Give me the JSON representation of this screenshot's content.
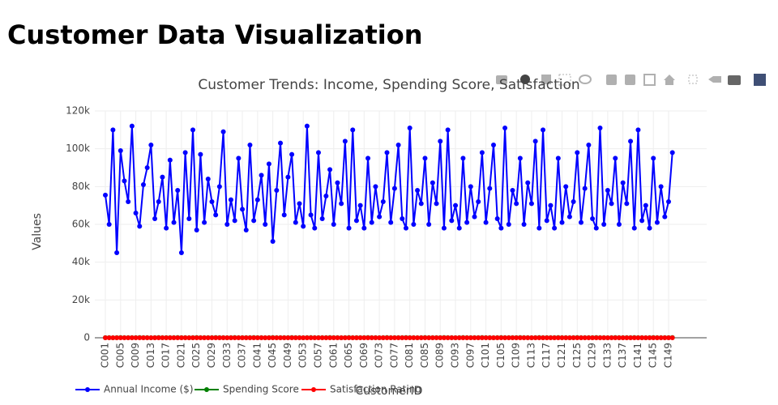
{
  "page_title": "Customer Data Visualization",
  "chart_data": {
    "type": "line",
    "title": "Customer Trends: Income, Spending Score, Satisfaction",
    "x_label": "CustomerID",
    "y_label": "Values",
    "categories": [
      "C001",
      null,
      null,
      null,
      "C005",
      null,
      null,
      null,
      "C009",
      null,
      null,
      null,
      "C013",
      null,
      null,
      null,
      "C017",
      null,
      null,
      null,
      "C021",
      null,
      null,
      null,
      "C025",
      null,
      null,
      null,
      "C029",
      null,
      null,
      null,
      "C033",
      null,
      null,
      null,
      "C037",
      null,
      null,
      null,
      "C041",
      null,
      null,
      null,
      "C045",
      null,
      null,
      null,
      "C049",
      null,
      null,
      null,
      "C053",
      null,
      null,
      null,
      "C057",
      null,
      null,
      null,
      "C061",
      null,
      null,
      null,
      "C065",
      null,
      null,
      null,
      "C069",
      null,
      null,
      null,
      "C073",
      null,
      null,
      null,
      "C077",
      null,
      null,
      null,
      "C081",
      null,
      null,
      null,
      "C085",
      null,
      null,
      null,
      "C089",
      null,
      null,
      null,
      "C093",
      null,
      null,
      null,
      "C097",
      null,
      null,
      null,
      "C101",
      null,
      null,
      null,
      "C105",
      null,
      null,
      null,
      "C109",
      null,
      null,
      null,
      "C113",
      null,
      null,
      null,
      "C117",
      null,
      null,
      null,
      "C121",
      null,
      null,
      null,
      "C125",
      null,
      null,
      null,
      "C129",
      null,
      null,
      null,
      "C133",
      null,
      null,
      null,
      "C137",
      null,
      null,
      null,
      "C141",
      null,
      null,
      null,
      "C145",
      null,
      null,
      null,
      "C149",
      null
    ],
    "series": [
      {
        "name": "Annual Income ($)",
        "color": "#0000ff",
        "values": [
          75500,
          60000,
          110000,
          45000,
          99000,
          83000,
          72000,
          112000,
          66000,
          59000,
          81000,
          90000,
          102000,
          63000,
          72000,
          85000,
          58000,
          94000,
          61000,
          78000,
          45000,
          98000,
          63000,
          110000,
          57000,
          97000,
          61000,
          84000,
          72000,
          65000,
          80000,
          109000,
          60000,
          73000,
          62000,
          95000,
          68000,
          57000,
          102000,
          62000,
          73000,
          86000,
          60000,
          92000,
          51000,
          78000,
          103000,
          65000,
          85000,
          97000,
          61000,
          71000,
          59000,
          112000,
          65000,
          58000,
          98000,
          63000,
          75000,
          89000,
          60000,
          82000,
          71000,
          104000,
          58000,
          110000,
          62000,
          70000,
          58000,
          95000,
          61000,
          80000,
          64000,
          72000,
          98000,
          61000,
          79000,
          102000,
          63000,
          58000,
          111000,
          60000,
          78000,
          71000,
          95000,
          60000,
          82000,
          71000,
          104000,
          58000,
          110000,
          62000,
          70000,
          58000,
          95000,
          61000,
          80000,
          64000,
          72000,
          98000,
          61000,
          79000,
          102000,
          63000,
          58000,
          111000,
          60000,
          78000,
          71000,
          95000,
          60000,
          82000,
          71000,
          104000,
          58000,
          110000,
          62000,
          70000,
          58000,
          95000,
          61000,
          80000,
          64000,
          72000,
          98000,
          61000,
          79000,
          102000,
          63000,
          58000,
          111000,
          60000,
          78000,
          71000,
          95000,
          60000,
          82000,
          71000,
          104000,
          58000,
          110000,
          62000,
          70000,
          58000,
          95000,
          61000,
          80000,
          64000,
          72000,
          98000
        ]
      },
      {
        "name": "Spending Score",
        "color": "#008000",
        "values": [
          42,
          78,
          15,
          63,
          89,
          27,
          54,
          71,
          36,
          95,
          42,
          78,
          15,
          63,
          89,
          27,
          54,
          71,
          36,
          95,
          42,
          78,
          15,
          63,
          89,
          27,
          54,
          71,
          36,
          95,
          42,
          78,
          15,
          63,
          89,
          27,
          54,
          71,
          36,
          95,
          42,
          78,
          15,
          63,
          89,
          27,
          54,
          71,
          36,
          95,
          42,
          78,
          15,
          63,
          89,
          27,
          54,
          71,
          36,
          95,
          42,
          78,
          15,
          63,
          89,
          27,
          54,
          71,
          36,
          95,
          42,
          78,
          15,
          63,
          89,
          27,
          54,
          71,
          36,
          95,
          42,
          78,
          15,
          63,
          89,
          27,
          54,
          71,
          36,
          95,
          42,
          78,
          15,
          63,
          89,
          27,
          54,
          71,
          36,
          95,
          42,
          78,
          15,
          63,
          89,
          27,
          54,
          71,
          36,
          95,
          42,
          78,
          15,
          63,
          89,
          27,
          54,
          71,
          36,
          95,
          42,
          78,
          15,
          63,
          89,
          27,
          54,
          71,
          36,
          95,
          42,
          78,
          15,
          63,
          89,
          27,
          54,
          71,
          36,
          95,
          42,
          78,
          15,
          63,
          89,
          27,
          54,
          71,
          36,
          95
        ]
      },
      {
        "name": "Satisfaction Rating",
        "color": "#ff0000",
        "values": [
          4,
          3,
          5,
          2,
          4,
          3,
          1,
          5,
          4,
          3,
          4,
          3,
          5,
          2,
          4,
          3,
          1,
          5,
          4,
          3,
          4,
          3,
          5,
          2,
          4,
          3,
          1,
          5,
          4,
          3,
          4,
          3,
          5,
          2,
          4,
          3,
          1,
          5,
          4,
          3,
          4,
          3,
          5,
          2,
          4,
          3,
          1,
          5,
          4,
          3,
          4,
          3,
          5,
          2,
          4,
          3,
          1,
          5,
          4,
          3,
          4,
          3,
          5,
          2,
          4,
          3,
          1,
          5,
          4,
          3,
          4,
          3,
          5,
          2,
          4,
          3,
          1,
          5,
          4,
          3,
          4,
          3,
          5,
          2,
          4,
          3,
          1,
          5,
          4,
          3,
          4,
          3,
          5,
          2,
          4,
          3,
          1,
          5,
          4,
          3,
          4,
          3,
          5,
          2,
          4,
          3,
          1,
          5,
          4,
          3,
          4,
          3,
          5,
          2,
          4,
          3,
          1,
          5,
          4,
          3,
          4,
          3,
          5,
          2,
          4,
          3,
          1,
          5,
          4,
          3,
          4,
          3,
          5,
          2,
          4,
          3,
          1,
          5,
          4,
          3,
          4,
          3,
          5,
          2,
          4,
          3,
          1,
          5,
          4,
          3
        ]
      }
    ],
    "ylim": [
      -6000,
      120000
    ],
    "yticks": [
      0,
      {
        "value": 20000,
        "label": "20k"
      },
      {
        "value": 40000,
        "label": "40k"
      },
      {
        "value": 60000,
        "label": "60k"
      },
      {
        "value": 80000,
        "label": "80k"
      },
      {
        "value": 100000,
        "label": "100k"
      },
      {
        "value": 120000,
        "label": "120k"
      }
    ],
    "grid": true,
    "legend": "bottom"
  }
}
